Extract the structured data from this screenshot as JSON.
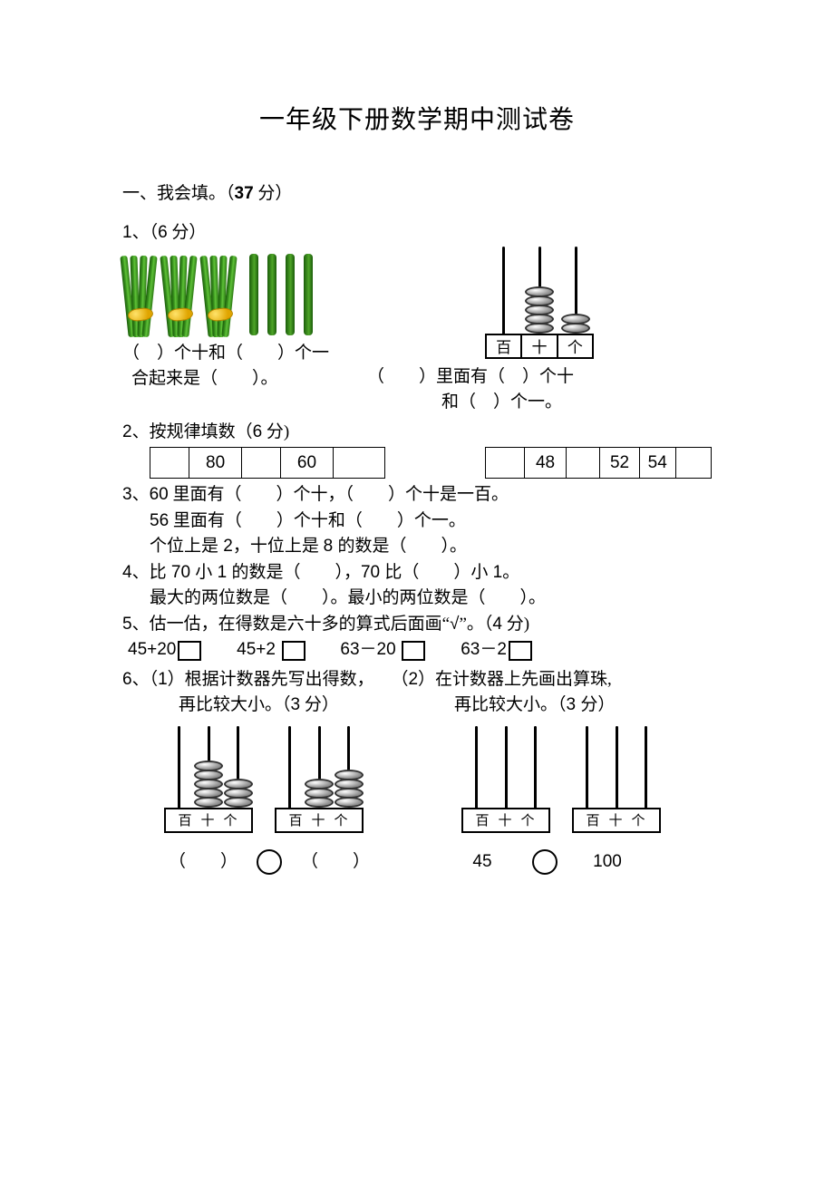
{
  "title": "一年级下册数学期中测试卷",
  "section1": {
    "head": "一、我会填。（",
    "points": "37",
    "pts_suffix": " 分）"
  },
  "q1": {
    "num": "1、（",
    "pts": "6",
    "pts_suf": " 分）",
    "left_line1_a": "（　）个十和（　　）个一",
    "left_line2": "合起来是（　　）。",
    "right_line1": "（　　）里面有（　）个十",
    "right_line2": "和（　）个一。",
    "abacus_labels": [
      "百",
      "十",
      "个"
    ]
  },
  "q2": {
    "num": "2、",
    "label": "按规律填数（",
    "pts": "6",
    "pts_suf": " 分)",
    "seqA": [
      "",
      "80",
      "",
      "60",
      ""
    ],
    "seqA_widths": [
      44,
      58,
      44,
      58,
      58
    ],
    "seqB": [
      "",
      "48",
      "",
      "52",
      "54",
      ""
    ],
    "seqB_widths": [
      44,
      46,
      38,
      44,
      40,
      40
    ]
  },
  "q3": {
    "num": "3、",
    "l1_a": "60",
    "l1_b": " 里面有（　　）个十，（　　）个十是一百。",
    "l2_a": "56",
    "l2_b": " 里面有（　　）个十和（　　）个一。",
    "l3_a": "个位上是",
    "l3_b": " 2",
    "l3_c": "，十位上是 ",
    "l3_d": "8 ",
    "l3_e": "的数是（　　）。"
  },
  "q4": {
    "num": "4、",
    "l1_a": "比",
    "l1_b": " 70 ",
    "l1_c": "小",
    "l1_d": " 1 ",
    "l1_e": "的数是（　　），",
    "l1_f": "70 ",
    "l1_g": "比（　　）小",
    "l1_h": " 1",
    "l1_i": "。",
    "l2": "最大的两位数是（　　）。最小的两位数是（　　）。"
  },
  "q5": {
    "num": "5、",
    "text_a": "估一估，在得数是六十多的算式后面画“",
    "check": "√",
    "text_b": "”。（",
    "pts": "4",
    "pts_suf": " 分)",
    "items": [
      "45+20",
      "45+2",
      "63－20",
      "63－2"
    ]
  },
  "q6": {
    "num": "6、",
    "p1_a": "（",
    "p1_b": "1",
    "p1_c": "）根据计数器先写出得数，",
    "p2_a": "（",
    "p2_b": "2",
    "p2_c": "）在计数器上先画出算珠,",
    "sub1": "再比较大小。（",
    "sub1_pts": "3",
    "sub1_suf": " 分）",
    "sub2": "再比较大小。（",
    "sub2_pts": "3 ",
    "sub2_suf": "分）",
    "labels": "百十个",
    "ansL_a": "（　　）",
    "ansL_b": "（　　）",
    "ansR_a": "45",
    "ansR_b": "100"
  },
  "abacus_small_width": 98,
  "abacus_q1_width": 120,
  "bead_counts": {
    "q1": [
      0,
      5,
      2
    ],
    "q6a": [
      0,
      5,
      3
    ],
    "q6b": [
      0,
      3,
      4
    ],
    "q6c": [
      0,
      0,
      0
    ],
    "q6d": [
      0,
      0,
      0
    ]
  },
  "colors": {
    "text": "#000000",
    "bg": "#ffffff",
    "stick_dark": "#1a5c0a",
    "stick_light": "#5fc338",
    "bead_fill": "#9a9a9a"
  }
}
